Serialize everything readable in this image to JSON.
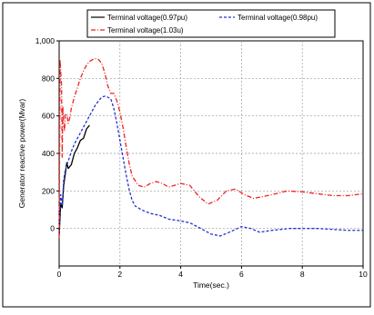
{
  "chart_data": {
    "type": "line",
    "xlabel": "Time(sec.)",
    "ylabel": "Generator reactive power(Mvar)",
    "xlim": [
      0,
      10
    ],
    "ylim": [
      -200,
      1000
    ],
    "xticks": [
      "0",
      "2",
      "4",
      "6",
      "8",
      "10"
    ],
    "yticks": [
      "0",
      "200",
      "400",
      "600",
      "800",
      "1,000"
    ],
    "grid": true,
    "legend_position": "top",
    "series": [
      {
        "name": "Terminal voltage(0.97pu)",
        "color": "#000000",
        "dash": "solid",
        "x": [
          0.0,
          0.05,
          0.1,
          0.15,
          0.2,
          0.25,
          0.3,
          0.4,
          0.5,
          0.6,
          0.7,
          0.8,
          0.9,
          1.0
        ],
        "y": [
          -40,
          130,
          110,
          230,
          290,
          350,
          320,
          340,
          400,
          430,
          470,
          480,
          530,
          550
        ]
      },
      {
        "name": "Terminal voltage(0.98pu)",
        "color": "#2233cc",
        "dash": "dash",
        "x": [
          0.0,
          0.05,
          0.1,
          0.15,
          0.2,
          0.3,
          0.4,
          0.5,
          0.6,
          0.7,
          0.8,
          0.9,
          1.0,
          1.1,
          1.2,
          1.3,
          1.4,
          1.5,
          1.6,
          1.7,
          1.8,
          1.9,
          2.0,
          2.1,
          2.2,
          2.3,
          2.4,
          2.5,
          2.7,
          3.0,
          3.3,
          3.6,
          4.0,
          4.3,
          4.6,
          5.0,
          5.3,
          5.6,
          6.0,
          6.3,
          6.6,
          7.0,
          7.3,
          7.6,
          8.0,
          8.5,
          9.0,
          9.5,
          10.0
        ],
        "y": [
          -20,
          180,
          120,
          260,
          310,
          360,
          410,
          450,
          480,
          510,
          540,
          570,
          600,
          630,
          660,
          680,
          700,
          705,
          700,
          690,
          640,
          560,
          470,
          380,
          290,
          210,
          150,
          120,
          100,
          80,
          70,
          50,
          40,
          30,
          5,
          -30,
          -40,
          -20,
          10,
          0,
          -20,
          -10,
          -5,
          0,
          0,
          0,
          -5,
          -10,
          -10
        ]
      },
      {
        "name": "Terminal voltage(1.03u)",
        "color": "#ee2222",
        "dash": "dashdot",
        "x": [
          0.0,
          0.03,
          0.05,
          0.08,
          0.1,
          0.12,
          0.15,
          0.18,
          0.2,
          0.25,
          0.3,
          0.35,
          0.4,
          0.5,
          0.6,
          0.7,
          0.8,
          0.9,
          1.0,
          1.1,
          1.2,
          1.3,
          1.4,
          1.5,
          1.6,
          1.7,
          1.8,
          1.9,
          2.0,
          2.1,
          2.2,
          2.3,
          2.4,
          2.6,
          2.8,
          3.0,
          3.2,
          3.4,
          3.6,
          3.8,
          4.0,
          4.3,
          4.6,
          4.9,
          5.2,
          5.5,
          5.8,
          6.1,
          6.4,
          6.7,
          7.0,
          7.5,
          8.0,
          8.5,
          9.0,
          9.5,
          10.0
        ],
        "y": [
          -50,
          900,
          840,
          760,
          380,
          650,
          560,
          520,
          610,
          610,
          560,
          590,
          640,
          700,
          750,
          800,
          840,
          870,
          890,
          900,
          905,
          900,
          880,
          830,
          760,
          720,
          720,
          680,
          620,
          540,
          440,
          350,
          280,
          230,
          220,
          240,
          250,
          240,
          220,
          230,
          240,
          230,
          170,
          130,
          150,
          200,
          210,
          180,
          160,
          170,
          180,
          200,
          195,
          185,
          175,
          175,
          185
        ]
      }
    ]
  }
}
